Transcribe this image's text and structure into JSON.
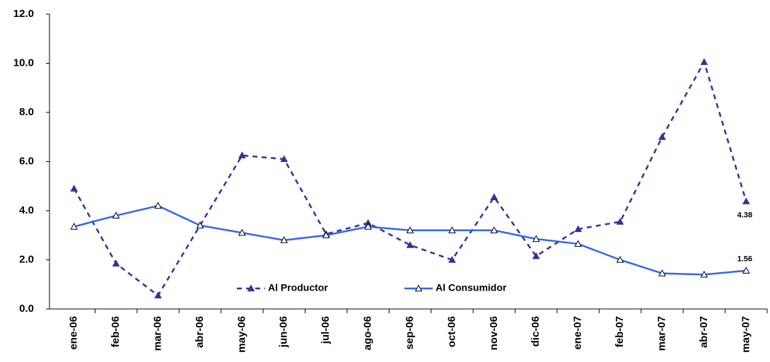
{
  "chart_data": {
    "type": "line",
    "categories": [
      "ene-06",
      "feb-06",
      "mar-06",
      "abr-06",
      "may-06",
      "jun-06",
      "jul-06",
      "ago-06",
      "sep-06",
      "oct-06",
      "nov-06",
      "dic-06",
      "ene-07",
      "feb-07",
      "mar-07",
      "abr-07",
      "may-07"
    ],
    "series": [
      {
        "name": "Al Productor",
        "color": "#333399",
        "dashed": true,
        "values": [
          4.9,
          1.85,
          0.55,
          3.4,
          6.25,
          6.1,
          3.05,
          3.5,
          2.6,
          2.0,
          4.55,
          2.15,
          3.25,
          3.55,
          7.0,
          10.05,
          4.38
        ],
        "value_labels": [
          null,
          null,
          null,
          null,
          null,
          null,
          null,
          null,
          null,
          null,
          null,
          null,
          null,
          null,
          null,
          null,
          "4.38"
        ]
      },
      {
        "name": "Al Consumidor",
        "color": "#3366ee",
        "dashed": false,
        "values": [
          3.35,
          3.8,
          4.2,
          3.4,
          3.1,
          2.8,
          3.0,
          3.35,
          3.2,
          3.2,
          3.2,
          2.85,
          2.65,
          2.0,
          1.45,
          1.4,
          1.56
        ],
        "value_labels": [
          null,
          null,
          null,
          null,
          null,
          null,
          null,
          null,
          null,
          null,
          null,
          null,
          null,
          null,
          null,
          null,
          "1.56"
        ]
      }
    ],
    "ylim": [
      0,
      12
    ],
    "yticks": [
      {
        "value": 0,
        "label": "0.0"
      },
      {
        "value": 2,
        "label": "2.0"
      },
      {
        "value": 4,
        "label": "4.0"
      },
      {
        "value": 6,
        "label": "6.0"
      },
      {
        "value": 8,
        "label": "8.0"
      },
      {
        "value": 10,
        "label": "10.0"
      },
      {
        "value": 12,
        "label": "12.0"
      }
    ],
    "grid": false,
    "legend": "bottom"
  }
}
